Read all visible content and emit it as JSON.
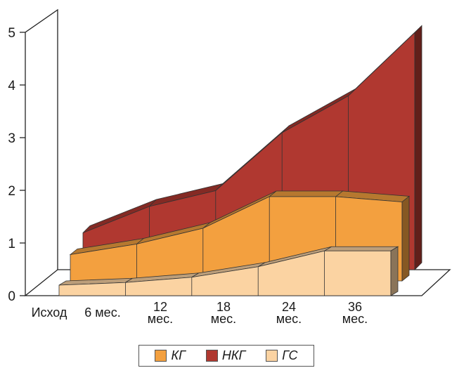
{
  "chart_data": {
    "type": "area",
    "title": "",
    "xlabel": "",
    "ylabel": "",
    "ylim": [
      0,
      5
    ],
    "yticks": [
      "0",
      "1",
      "2",
      "3",
      "4",
      "5"
    ],
    "categories": [
      [
        "Исход"
      ],
      [
        "6 мес."
      ],
      [
        "12",
        "мес."
      ],
      [
        "18",
        "мес."
      ],
      [
        "24",
        "мес."
      ],
      [
        "36",
        "мес."
      ]
    ],
    "series": [
      {
        "name": "НКГ",
        "color": "#b03830",
        "values": [
          0.7,
          1.2,
          1.5,
          2.6,
          3.3,
          4.5
        ]
      },
      {
        "name": "КГ",
        "color": "#f3a03f",
        "values": [
          0.5,
          0.7,
          1.0,
          1.6,
          1.6,
          1.5
        ]
      },
      {
        "name": "ГС",
        "color": "#fbd3a2",
        "values": [
          0.2,
          0.25,
          0.35,
          0.55,
          0.85,
          0.85
        ]
      }
    ],
    "legend": {
      "position": "bottom",
      "items": [
        "КГ",
        "НКГ",
        "ГС"
      ]
    }
  }
}
